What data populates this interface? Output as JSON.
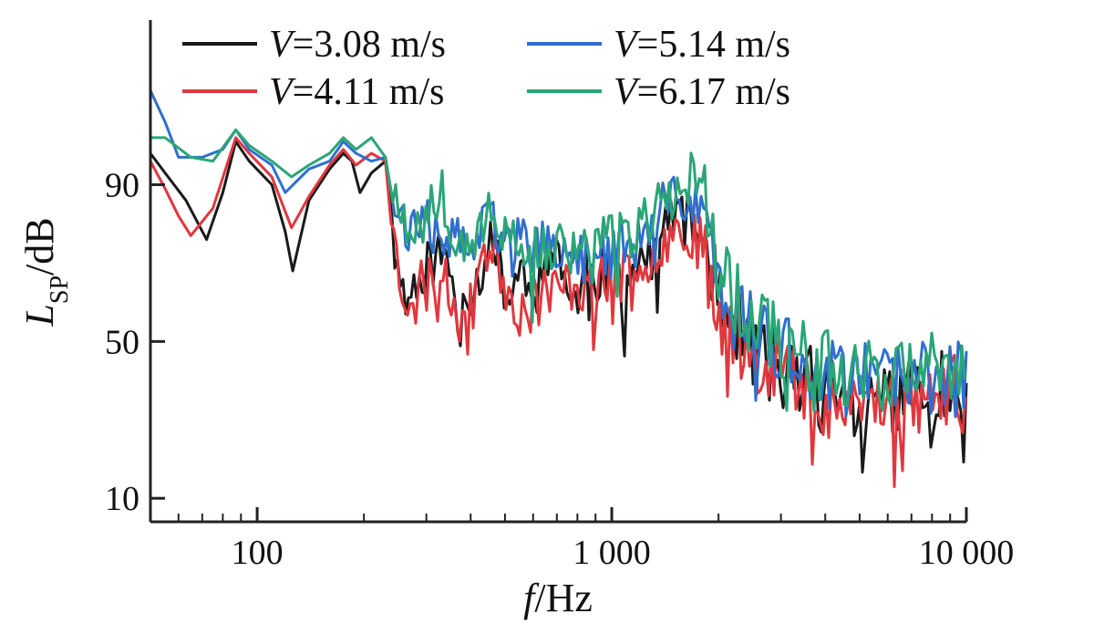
{
  "chart_data": {
    "type": "line",
    "xscale": "log",
    "xlim": [
      50,
      10000
    ],
    "ylim": [
      4,
      132
    ],
    "x_ticks": [
      {
        "value": 100,
        "label": "100"
      },
      {
        "value": 1000,
        "label": "1 000"
      },
      {
        "value": 10000,
        "label": "10 000"
      }
    ],
    "y_ticks": [
      {
        "value": 10,
        "label": "10"
      },
      {
        "value": 50,
        "label": "50"
      },
      {
        "value": 90,
        "label": "90"
      }
    ],
    "xlabel": {
      "italic": "f",
      "rest": "/Hz"
    },
    "ylabel": {
      "italic": "L",
      "sub": "SP",
      "rest": "/dB"
    },
    "grid": false,
    "legend_placement": "top-left",
    "series": [
      {
        "name": "V=3.08 m/s",
        "name_italic": "V",
        "name_rest": "=3.08 m/s",
        "color": "#1a1a1a",
        "seed": 11,
        "offset": 0,
        "points": [
          [
            50,
            98
          ],
          [
            55,
            93
          ],
          [
            63,
            86
          ],
          [
            72,
            76
          ],
          [
            80,
            88
          ],
          [
            87,
            101
          ],
          [
            95,
            96
          ],
          [
            110,
            90
          ],
          [
            120,
            78
          ],
          [
            126,
            68
          ],
          [
            140,
            86
          ],
          [
            160,
            94
          ],
          [
            175,
            98
          ],
          [
            185,
            96
          ],
          [
            195,
            88
          ],
          [
            210,
            93
          ],
          [
            230,
            96
          ],
          [
            250,
            75
          ],
          [
            260,
            58
          ],
          [
            280,
            66
          ],
          [
            300,
            69
          ],
          [
            330,
            73
          ],
          [
            360,
            64
          ],
          [
            400,
            63
          ],
          [
            430,
            67
          ],
          [
            450,
            79
          ],
          [
            480,
            69
          ],
          [
            520,
            60
          ],
          [
            550,
            72
          ],
          [
            600,
            58
          ],
          [
            650,
            74
          ],
          [
            700,
            70
          ],
          [
            750,
            64
          ],
          [
            800,
            60
          ],
          [
            850,
            70
          ],
          [
            900,
            66
          ],
          [
            1000,
            69
          ],
          [
            1100,
            66
          ],
          [
            1200,
            72
          ],
          [
            1300,
            70
          ],
          [
            1500,
            84
          ],
          [
            1600,
            81
          ],
          [
            1700,
            79
          ],
          [
            1800,
            76
          ],
          [
            2000,
            66
          ],
          [
            2200,
            55
          ],
          [
            2500,
            48
          ],
          [
            2800,
            44
          ],
          [
            3000,
            42
          ],
          [
            3500,
            40
          ],
          [
            4000,
            38
          ],
          [
            4500,
            36
          ],
          [
            5000,
            34
          ],
          [
            5100,
            7
          ],
          [
            5200,
            34
          ],
          [
            6000,
            37
          ],
          [
            7000,
            36
          ],
          [
            8000,
            37
          ],
          [
            9000,
            38
          ],
          [
            10000,
            36
          ]
        ]
      },
      {
        "name": "V=4.11 m/s",
        "name_italic": "V",
        "name_rest": "=4.11 m/s",
        "color": "#e0383e",
        "seed": 23,
        "offset": -1,
        "points": [
          [
            50,
            96
          ],
          [
            55,
            89
          ],
          [
            60,
            82
          ],
          [
            65,
            77
          ],
          [
            75,
            84
          ],
          [
            87,
            102
          ],
          [
            95,
            98
          ],
          [
            110,
            92
          ],
          [
            125,
            79
          ],
          [
            140,
            87
          ],
          [
            160,
            95
          ],
          [
            175,
            99
          ],
          [
            190,
            95
          ],
          [
            210,
            98
          ],
          [
            230,
            96
          ],
          [
            250,
            68
          ],
          [
            260,
            62
          ],
          [
            280,
            64
          ],
          [
            300,
            66
          ],
          [
            330,
            67
          ],
          [
            360,
            60
          ],
          [
            400,
            66
          ],
          [
            450,
            75
          ],
          [
            500,
            65
          ],
          [
            550,
            58
          ],
          [
            600,
            62
          ],
          [
            650,
            64
          ],
          [
            700,
            63
          ],
          [
            800,
            65
          ],
          [
            900,
            63
          ],
          [
            1000,
            67
          ],
          [
            1100,
            66
          ],
          [
            1200,
            69
          ],
          [
            1400,
            76
          ],
          [
            1600,
            80
          ],
          [
            1800,
            74
          ],
          [
            2000,
            58
          ],
          [
            2200,
            52
          ],
          [
            2500,
            47
          ],
          [
            3000,
            44
          ],
          [
            3500,
            37
          ],
          [
            4000,
            35
          ],
          [
            5000,
            35
          ],
          [
            6000,
            34
          ],
          [
            7000,
            34
          ],
          [
            8000,
            36
          ],
          [
            9000,
            37
          ],
          [
            10000,
            36
          ]
        ]
      },
      {
        "name": "V=5.14 m/s",
        "name_italic": "V",
        "name_rest": "=5.14 m/s",
        "color": "#2f6fcf",
        "seed": 37,
        "offset": 0,
        "points": [
          [
            50,
            114
          ],
          [
            55,
            106
          ],
          [
            60,
            97
          ],
          [
            70,
            97
          ],
          [
            80,
            99
          ],
          [
            87,
            104
          ],
          [
            95,
            99
          ],
          [
            110,
            95
          ],
          [
            120,
            88
          ],
          [
            140,
            94
          ],
          [
            160,
            96
          ],
          [
            175,
            101
          ],
          [
            190,
            98
          ],
          [
            210,
            96
          ],
          [
            230,
            97
          ],
          [
            250,
            84
          ],
          [
            270,
            78
          ],
          [
            300,
            79
          ],
          [
            330,
            80
          ],
          [
            360,
            75
          ],
          [
            400,
            74
          ],
          [
            450,
            80
          ],
          [
            500,
            78
          ],
          [
            550,
            76
          ],
          [
            600,
            74
          ],
          [
            700,
            73
          ],
          [
            800,
            71
          ],
          [
            900,
            72
          ],
          [
            1000,
            73
          ],
          [
            1200,
            75
          ],
          [
            1400,
            84
          ],
          [
            1600,
            87
          ],
          [
            1800,
            83
          ],
          [
            2000,
            68
          ],
          [
            2200,
            60
          ],
          [
            2500,
            52
          ],
          [
            3000,
            48
          ],
          [
            3500,
            44
          ],
          [
            4000,
            42
          ],
          [
            5000,
            40
          ],
          [
            6000,
            40
          ],
          [
            7000,
            40
          ],
          [
            8000,
            41
          ],
          [
            9000,
            41
          ],
          [
            10000,
            40
          ]
        ]
      },
      {
        "name": "V=6.17 m/s",
        "name_italic": "V",
        "name_rest": "=6.17 m/s",
        "color": "#2aa676",
        "seed": 53,
        "offset": 1,
        "points": [
          [
            50,
            102
          ],
          [
            55,
            102
          ],
          [
            65,
            97
          ],
          [
            75,
            96
          ],
          [
            87,
            104
          ],
          [
            95,
            100
          ],
          [
            110,
            96
          ],
          [
            125,
            92
          ],
          [
            140,
            95
          ],
          [
            160,
            98
          ],
          [
            175,
            102
          ],
          [
            190,
            99
          ],
          [
            210,
            102
          ],
          [
            230,
            97
          ],
          [
            250,
            86
          ],
          [
            270,
            80
          ],
          [
            300,
            82
          ],
          [
            320,
            88
          ],
          [
            330,
            95
          ],
          [
            340,
            84
          ],
          [
            360,
            78
          ],
          [
            400,
            76
          ],
          [
            450,
            81
          ],
          [
            500,
            79
          ],
          [
            600,
            74
          ],
          [
            700,
            74
          ],
          [
            800,
            73
          ],
          [
            900,
            74
          ],
          [
            1000,
            76
          ],
          [
            1200,
            79
          ],
          [
            1400,
            86
          ],
          [
            1600,
            90
          ],
          [
            1750,
            94
          ],
          [
            1900,
            82
          ],
          [
            2000,
            70
          ],
          [
            2200,
            62
          ],
          [
            2500,
            55
          ],
          [
            3000,
            50
          ],
          [
            3500,
            46
          ],
          [
            4000,
            44
          ],
          [
            5000,
            43
          ],
          [
            6000,
            42
          ],
          [
            7000,
            42
          ],
          [
            8000,
            43
          ],
          [
            9000,
            42
          ],
          [
            10000,
            41
          ]
        ]
      }
    ]
  }
}
